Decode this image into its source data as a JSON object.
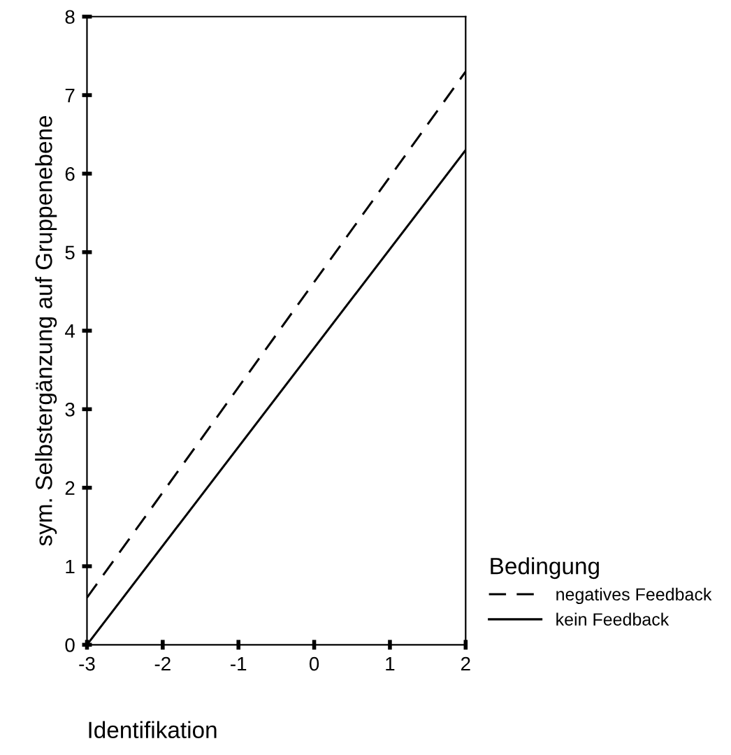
{
  "chart_data": {
    "type": "line",
    "xlabel": "Identifikation",
    "ylabel": "sym. Selbstergänzung auf Gruppenebene",
    "legend_title": "Bedingung",
    "x": [
      -3,
      2
    ],
    "series": [
      {
        "name": "negatives Feedback",
        "color": "#000000",
        "values": [
          0.6,
          7.3
        ],
        "line_style": "dashed"
      },
      {
        "name": "kein Feedback",
        "color": "#000000",
        "values": [
          0,
          6.3
        ],
        "line_style": "solid"
      }
    ],
    "xlim": [
      -3,
      2
    ],
    "xticks": [
      -3,
      -2,
      -1,
      0,
      1,
      2
    ],
    "ylim": [
      0,
      8
    ],
    "yticks": [
      0,
      1,
      2,
      3,
      4,
      5,
      6,
      7,
      8
    ],
    "grid": false,
    "legend": "right"
  }
}
